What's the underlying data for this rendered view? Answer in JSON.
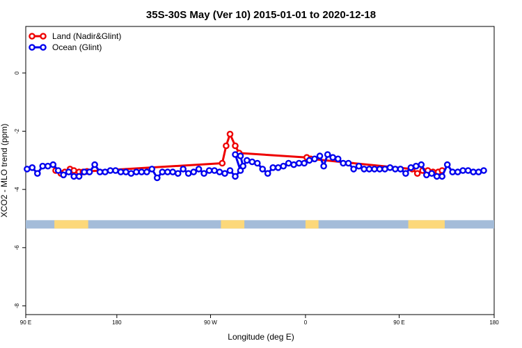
{
  "chart_data": {
    "type": "line",
    "title": "35S-30S May (Ver 10)   2015-01-01 to 2020-12-18",
    "xlabel": "Longitude (deg E)",
    "ylabel": "XCO2 - MLO trend (ppm)",
    "xlim": [
      90,
      450
    ],
    "ylim": [
      -8.3,
      1.6
    ],
    "x_ticks": [
      {
        "value": 90,
        "label": "90 E"
      },
      {
        "value": 160,
        "label": "180"
      },
      {
        "value": 232,
        "label": "90 W"
      },
      {
        "value": 305,
        "label": "0"
      },
      {
        "value": 377,
        "label": "90 E"
      },
      {
        "value": 450,
        "label": "180"
      }
    ],
    "y_ticks": [
      {
        "value": 0,
        "label": "0"
      },
      {
        "value": -2,
        "label": "-2"
      },
      {
        "value": -4,
        "label": "-4"
      },
      {
        "value": -6,
        "label": "-6"
      },
      {
        "value": -8,
        "label": "-8"
      }
    ],
    "land_strip": {
      "y_value": -5.2,
      "ocean_color": "#a4bcd9",
      "land_color": "#fcd87a",
      "land_ranges": [
        [
          112,
          138
        ],
        [
          240,
          258
        ],
        [
          305,
          315
        ],
        [
          384,
          412
        ]
      ]
    },
    "series": [
      {
        "name": "Land (Nadir&Glint)",
        "color": "#ee0000",
        "points": [
          [
            113,
            -3.35
          ],
          [
            117,
            -3.45
          ],
          [
            120,
            -3.4
          ],
          [
            124,
            -3.3
          ],
          [
            127,
            -3.35
          ],
          [
            131,
            -3.4
          ],
          [
            134,
            -3.4
          ],
          [
            137,
            -3.38
          ],
          [
            241,
            -3.1
          ],
          [
            244,
            -2.5
          ],
          [
            247,
            -2.1
          ],
          [
            251,
            -2.5
          ],
          [
            254,
            -2.75
          ],
          [
            306,
            -2.9
          ],
          [
            309,
            -2.95
          ],
          [
            387,
            -3.3
          ],
          [
            391,
            -3.45
          ],
          [
            395,
            -3.35
          ],
          [
            399,
            -3.35
          ],
          [
            403,
            -3.4
          ],
          [
            407,
            -3.4
          ],
          [
            410,
            -3.35
          ]
        ]
      },
      {
        "name": "Ocean (Glint)",
        "color": "#0000ee",
        "points": [
          [
            91,
            -3.3
          ],
          [
            95,
            -3.25
          ],
          [
            99,
            -3.45
          ],
          [
            103,
            -3.2
          ],
          [
            107,
            -3.2
          ],
          [
            111,
            -3.15
          ],
          [
            115,
            -3.35
          ],
          [
            119,
            -3.5
          ],
          [
            123,
            -3.4
          ],
          [
            127,
            -3.55
          ],
          [
            131,
            -3.55
          ],
          [
            135,
            -3.4
          ],
          [
            139,
            -3.4
          ],
          [
            143,
            -3.15
          ],
          [
            147,
            -3.4
          ],
          [
            151,
            -3.4
          ],
          [
            155,
            -3.35
          ],
          [
            159,
            -3.35
          ],
          [
            163,
            -3.4
          ],
          [
            167,
            -3.4
          ],
          [
            171,
            -3.45
          ],
          [
            175,
            -3.4
          ],
          [
            179,
            -3.4
          ],
          [
            183,
            -3.4
          ],
          [
            187,
            -3.3
          ],
          [
            191,
            -3.6
          ],
          [
            195,
            -3.4
          ],
          [
            199,
            -3.4
          ],
          [
            203,
            -3.4
          ],
          [
            207,
            -3.45
          ],
          [
            211,
            -3.3
          ],
          [
            215,
            -3.45
          ],
          [
            219,
            -3.4
          ],
          [
            223,
            -3.3
          ],
          [
            227,
            -3.45
          ],
          [
            231,
            -3.35
          ],
          [
            235,
            -3.35
          ],
          [
            239,
            -3.4
          ],
          [
            243,
            -3.45
          ],
          [
            247,
            -3.35
          ],
          [
            251,
            -3.55
          ],
          [
            255,
            -3.35
          ],
          [
            251,
            -2.8
          ],
          [
            255,
            -2.85
          ],
          [
            257,
            -3.2
          ],
          [
            260,
            -3.0
          ],
          [
            264,
            -3.05
          ],
          [
            268,
            -3.1
          ],
          [
            272,
            -3.3
          ],
          [
            276,
            -3.45
          ],
          [
            280,
            -3.25
          ],
          [
            284,
            -3.25
          ],
          [
            288,
            -3.2
          ],
          [
            292,
            -3.1
          ],
          [
            296,
            -3.15
          ],
          [
            300,
            -3.1
          ],
          [
            304,
            -3.1
          ],
          [
            308,
            -3.0
          ],
          [
            312,
            -2.95
          ],
          [
            316,
            -2.85
          ],
          [
            319,
            -3.2
          ],
          [
            322,
            -2.8
          ],
          [
            326,
            -2.9
          ],
          [
            330,
            -2.95
          ],
          [
            334,
            -3.1
          ],
          [
            338,
            -3.1
          ],
          [
            342,
            -3.3
          ],
          [
            346,
            -3.2
          ],
          [
            350,
            -3.3
          ],
          [
            354,
            -3.3
          ],
          [
            358,
            -3.3
          ],
          [
            362,
            -3.3
          ],
          [
            366,
            -3.3
          ],
          [
            370,
            -3.25
          ],
          [
            374,
            -3.3
          ],
          [
            378,
            -3.3
          ],
          [
            382,
            -3.45
          ],
          [
            386,
            -3.25
          ],
          [
            390,
            -3.2
          ],
          [
            394,
            -3.15
          ],
          [
            398,
            -3.5
          ],
          [
            402,
            -3.45
          ],
          [
            406,
            -3.55
          ],
          [
            410,
            -3.55
          ],
          [
            414,
            -3.15
          ],
          [
            418,
            -3.4
          ],
          [
            422,
            -3.4
          ],
          [
            426,
            -3.35
          ],
          [
            430,
            -3.35
          ],
          [
            434,
            -3.4
          ],
          [
            438,
            -3.4
          ],
          [
            442,
            -3.35
          ]
        ]
      }
    ],
    "legend": {
      "position": "top-left",
      "entries": [
        "Land (Nadir&Glint)",
        "Ocean (Glint)"
      ]
    }
  }
}
